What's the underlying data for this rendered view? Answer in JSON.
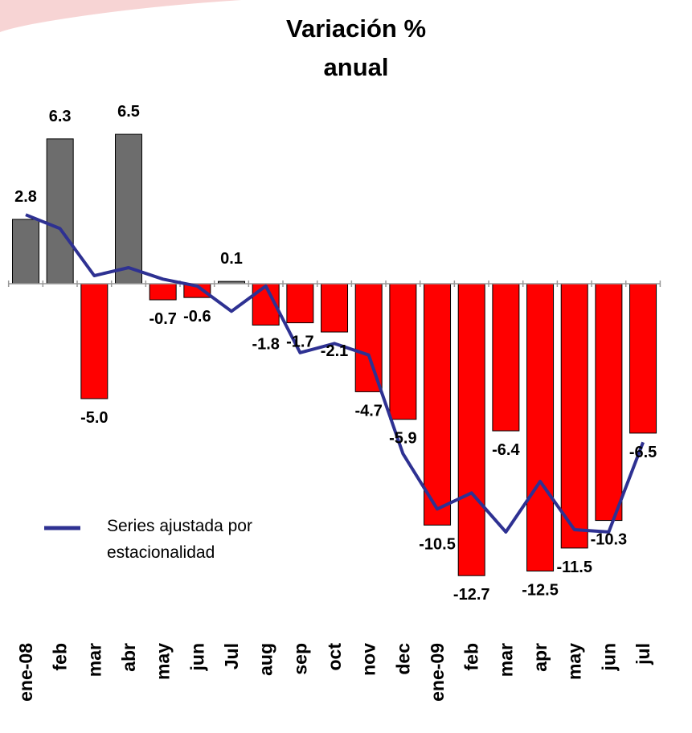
{
  "chart_data": {
    "type": "bar",
    "title": "Variación % anual",
    "categories": [
      "ene-08",
      "feb",
      "mar",
      "abr",
      "may",
      "jun",
      "Jul",
      "aug",
      "sep",
      "oct",
      "nov",
      "dec",
      "ene-09",
      "feb",
      "mar",
      "apr",
      "may",
      "jun",
      "jul"
    ],
    "values": [
      2.8,
      6.3,
      -5.0,
      6.5,
      -0.7,
      -0.6,
      0.1,
      -1.8,
      -1.7,
      -2.1,
      -4.7,
      -5.9,
      -10.5,
      -12.7,
      -6.4,
      -12.5,
      -11.5,
      -10.3,
      -6.5
    ],
    "value_labels": [
      "2.8",
      "6.3",
      "-5.0",
      "6.5",
      "-0.7",
      "-0.6",
      "0.1",
      "-1.8",
      "-1.7",
      "-2.1",
      "-4.7",
      "-5.9",
      "-10.5",
      "-12.7",
      "-6.4",
      "-12.5",
      "-11.5",
      "-10.3",
      "-6.5"
    ],
    "positive_color": "#6d6d6d",
    "negative_color": "#ff0000",
    "line": {
      "name": "Series ajustada por estacionalidad",
      "color": "#2e3192",
      "values": [
        3.0,
        2.4,
        0.35,
        0.7,
        0.2,
        -0.1,
        -1.2,
        -0.1,
        -3.0,
        -2.6,
        -3.1,
        -7.4,
        -9.8,
        -9.1,
        -10.8,
        -8.6,
        -10.7,
        -10.8,
        -6.9
      ]
    },
    "ylim": [
      -14,
      9
    ],
    "legend": "bottom-left"
  }
}
